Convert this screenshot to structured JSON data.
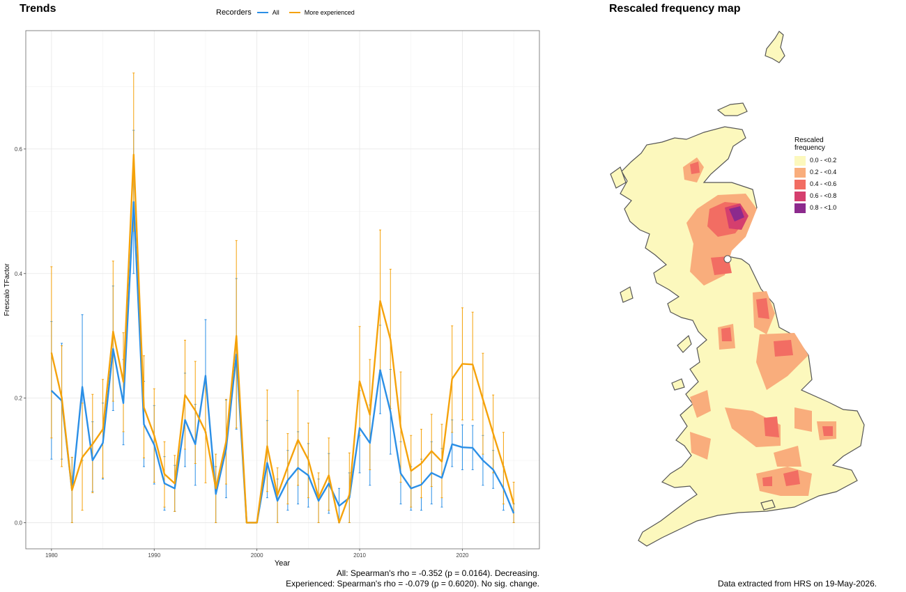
{
  "left_panel": {
    "title": "Trends"
  },
  "right_panel": {
    "title": "Rescaled frequency map"
  },
  "chart_data": {
    "type": "line",
    "title": "Trends",
    "xlabel": "Year",
    "ylabel": "Frescalo TFactor",
    "xlim": [
      1977.5,
      2027.5
    ],
    "ylim": [
      -0.042,
      0.79
    ],
    "x_ticks": [
      1980,
      1990,
      2000,
      2010,
      2020
    ],
    "x_tick_labels": [
      "1980",
      "1990",
      "2000",
      "2010",
      "2020"
    ],
    "y_ticks": [
      0.0,
      0.2,
      0.4,
      0.6
    ],
    "y_tick_labels": [
      "0.0",
      "0.2",
      "0.4",
      "0.6"
    ],
    "grid": true,
    "legend": {
      "title": "Recorders",
      "position": "top"
    },
    "x": [
      1980,
      1981,
      1982,
      1983,
      1984,
      1985,
      1986,
      1987,
      1988,
      1989,
      1990,
      1991,
      1992,
      1993,
      1994,
      1995,
      1996,
      1997,
      1998,
      1999,
      2000,
      2001,
      2002,
      2003,
      2004,
      2005,
      2006,
      2007,
      2008,
      2009,
      2010,
      2011,
      2012,
      2013,
      2014,
      2015,
      2016,
      2017,
      2018,
      2019,
      2020,
      2021,
      2022,
      2023,
      2024,
      2025
    ],
    "series": [
      {
        "name": "All",
        "color": "#2b8fe6",
        "values": [
          0.212,
          0.196,
          0.052,
          0.218,
          0.1,
          0.128,
          0.279,
          0.192,
          0.515,
          0.158,
          0.125,
          0.063,
          0.055,
          0.165,
          0.126,
          0.236,
          0.046,
          0.118,
          0.27,
          0.0,
          0.0,
          0.096,
          0.035,
          0.068,
          0.088,
          0.076,
          0.035,
          0.063,
          0.027,
          0.04,
          0.152,
          0.128,
          0.245,
          0.178,
          0.079,
          0.055,
          0.061,
          0.08,
          0.072,
          0.126,
          0.121,
          0.12,
          0.1,
          0.085,
          0.055,
          0.015
        ],
        "lower": [
          0.102,
          0.102,
          0.0,
          0.1,
          0.05,
          0.07,
          0.18,
          0.125,
          0.4,
          0.09,
          0.062,
          0.02,
          0.018,
          0.09,
          0.06,
          0.145,
          0.0,
          0.04,
          0.15,
          0.0,
          0.0,
          0.04,
          0.0,
          0.02,
          0.03,
          0.025,
          0.0,
          0.015,
          0.0,
          0.0,
          0.08,
          0.06,
          0.175,
          0.11,
          0.03,
          0.02,
          0.02,
          0.03,
          0.025,
          0.09,
          0.085,
          0.085,
          0.06,
          0.055,
          0.02,
          0.0
        ],
        "upper": [
          0.323,
          0.288,
          0.105,
          0.334,
          0.162,
          0.192,
          0.38,
          0.262,
          0.63,
          0.227,
          0.188,
          0.106,
          0.092,
          0.24,
          0.19,
          0.326,
          0.09,
          0.197,
          0.392,
          0.0,
          0.0,
          0.164,
          0.07,
          0.116,
          0.146,
          0.127,
          0.07,
          0.111,
          0.055,
          0.08,
          0.212,
          0.189,
          0.317,
          0.246,
          0.13,
          0.09,
          0.102,
          0.13,
          0.119,
          0.165,
          0.157,
          0.156,
          0.14,
          0.116,
          0.09,
          0.03
        ]
      },
      {
        "name": "More experienced",
        "color": "#f5a20a",
        "values": [
          0.273,
          0.201,
          0.052,
          0.105,
          0.126,
          0.15,
          0.307,
          0.226,
          0.591,
          0.185,
          0.14,
          0.078,
          0.063,
          0.205,
          0.18,
          0.146,
          0.055,
          0.13,
          0.3,
          0.0,
          0.0,
          0.123,
          0.044,
          0.09,
          0.133,
          0.101,
          0.04,
          0.076,
          0.0,
          0.045,
          0.227,
          0.173,
          0.356,
          0.294,
          0.153,
          0.083,
          0.095,
          0.115,
          0.098,
          0.231,
          0.255,
          0.254,
          0.198,
          0.143,
          0.09,
          0.03
        ],
        "lower": [
          0.136,
          0.09,
          0.0,
          0.02,
          0.048,
          0.072,
          0.195,
          0.146,
          0.468,
          0.104,
          0.065,
          0.025,
          0.018,
          0.118,
          0.095,
          0.064,
          0.0,
          0.062,
          0.152,
          0.0,
          0.0,
          0.05,
          0.0,
          0.03,
          0.06,
          0.04,
          0.0,
          0.02,
          0.0,
          0.0,
          0.14,
          0.085,
          0.245,
          0.183,
          0.065,
          0.025,
          0.04,
          0.058,
          0.04,
          0.145,
          0.165,
          0.165,
          0.11,
          0.08,
          0.03,
          0.0
        ],
        "upper": [
          0.411,
          0.284,
          0.105,
          0.192,
          0.206,
          0.23,
          0.42,
          0.305,
          0.722,
          0.268,
          0.215,
          0.13,
          0.108,
          0.293,
          0.259,
          0.23,
          0.11,
          0.198,
          0.453,
          0.0,
          0.0,
          0.213,
          0.088,
          0.143,
          0.212,
          0.16,
          0.08,
          0.136,
          0.0,
          0.112,
          0.315,
          0.262,
          0.47,
          0.407,
          0.242,
          0.14,
          0.15,
          0.174,
          0.158,
          0.316,
          0.345,
          0.338,
          0.272,
          0.205,
          0.145,
          0.065
        ]
      }
    ],
    "footnotes": [
      "All: Spearman's rho = -0.352 (p = 0.0164). Decreasing.",
      "Experienced: Spearman's rho = -0.079 (p = 0.6020). No sig. change."
    ]
  },
  "map_legend": {
    "title_line1": "Rescaled",
    "title_line2": "frequency",
    "items": [
      {
        "label": "0.0 - <0.2",
        "color": "#fcf8bd"
      },
      {
        "label": "0.2 - <0.4",
        "color": "#f9ad7c"
      },
      {
        "label": "0.4 - <0.6",
        "color": "#f26d63"
      },
      {
        "label": "0.6 - <0.8",
        "color": "#d53f6e"
      },
      {
        "label": "0.8 - <1.0",
        "color": "#8c2a8d"
      }
    ]
  },
  "map_caption": "Data extracted from HRS on 19-May-2026."
}
